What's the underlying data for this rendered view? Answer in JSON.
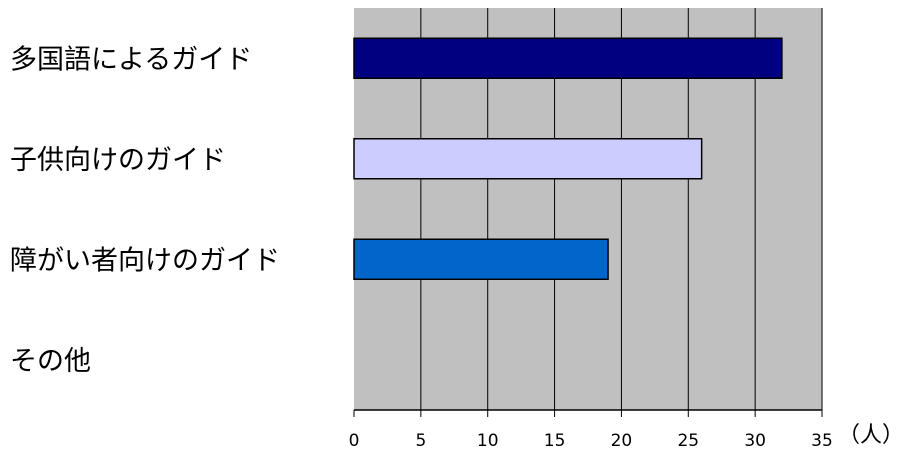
{
  "chart_data": {
    "type": "bar",
    "orientation": "horizontal",
    "categories": [
      "多国語によるガイド",
      "子供向けのガイド",
      "障がい者向けのガイド",
      "その他"
    ],
    "values": [
      32,
      26,
      19,
      0
    ],
    "bar_colors": [
      "#000080",
      "#ccccff",
      "#0066cc",
      "#cccccc"
    ],
    "plot_background": "#c0c0c0",
    "xlim": [
      0,
      35
    ],
    "x_ticks": [
      0,
      5,
      10,
      15,
      20,
      25,
      30,
      35
    ],
    "x_unit": "（人）",
    "grid": "vertical",
    "legend": "none"
  }
}
